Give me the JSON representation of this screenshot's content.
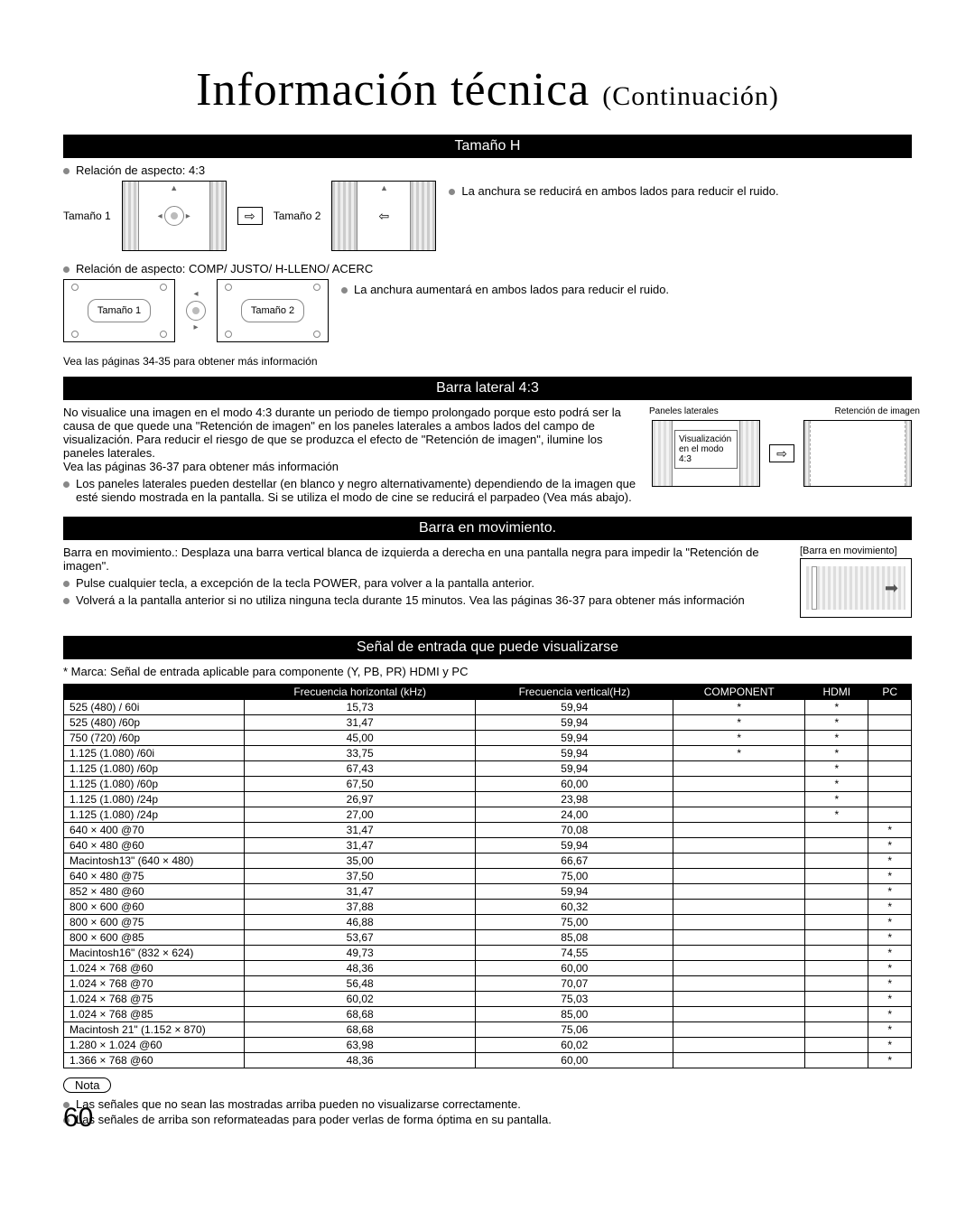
{
  "page_number": "60",
  "title_main": "Información técnica",
  "title_suffix": "(Continuación)",
  "sections": {
    "tamano_h": {
      "header": "Tamaño H",
      "aspect_43_label": "Relación de aspecto: 4:3",
      "aspect_other_label": "Relación de aspecto: COMP/ JUSTO/ H-LLENO/ ACERC",
      "tam1": "Tamaño 1",
      "tam2": "Tamaño 2",
      "note_shrink": "La anchura se reducirá en ambos lados para reducir el ruido.",
      "note_expand": "La anchura aumentará en ambos lados para reducir el ruido.",
      "see_more": "Vea las páginas 34-35 para obtener más información"
    },
    "barra_lateral": {
      "header": "Barra lateral 4:3",
      "para": "No visualice una imagen en el modo 4:3 durante un periodo de tiempo prolongado porque esto podrá ser la causa de que quede una \"Retención de imagen\" en los paneles laterales a ambos lados del campo de visualización. Para reducir el riesgo de que se produzca el efecto de \"Retención de imagen\", ilumine los paneles laterales.",
      "see_more": "Vea las páginas 36-37 para obtener más información",
      "bullet": "Los paneles laterales pueden destellar (en blanco y negro alternativamente) dependiendo de la imagen que esté siendo mostrada en la pantalla. Si se utiliza el modo de cine se reducirá el parpadeo (Vea más abajo).",
      "label_paneles": "Paneles laterales",
      "label_viz": "Visualización en el modo 4:3",
      "label_retencion": "Retención de imagen"
    },
    "barra_mov": {
      "header": "Barra en movimiento.",
      "desc": "Barra en movimiento.: Desplaza una barra vertical blanca de izquierda a derecha en una pantalla negra para impedir la \"Retención de imagen\".",
      "bullet1": "Pulse cualquier tecla, a excepción de la tecla POWER, para volver a la pantalla anterior.",
      "bullet2": "Volverá a la pantalla anterior si no utiliza ninguna tecla durante 15 minutos. Vea las páginas 36-37 para obtener más información",
      "diagram_label": "[Barra en movimiento]"
    },
    "senal": {
      "header": "Señal de entrada que puede visualizarse",
      "mark_note": "* Marca: Señal de entrada aplicable para componente (Y, PB, PR) HDMI y PC",
      "columns": [
        "",
        "Frecuencia horizontal (kHz)",
        "Frecuencia vertical(Hz)",
        "COMPONENT",
        "HDMI",
        "PC"
      ],
      "rows": [
        {
          "s": "525 (480) / 60i",
          "h": "15,73",
          "v": "59,94",
          "c": "*",
          "hd": "*",
          "p": ""
        },
        {
          "s": "525 (480) /60p",
          "h": "31,47",
          "v": "59,94",
          "c": "*",
          "hd": "*",
          "p": ""
        },
        {
          "s": "750 (720) /60p",
          "h": "45,00",
          "v": "59,94",
          "c": "*",
          "hd": "*",
          "p": ""
        },
        {
          "s": "1.125 (1.080) /60i",
          "h": "33,75",
          "v": "59,94",
          "c": "*",
          "hd": "*",
          "p": ""
        },
        {
          "s": "1.125 (1.080) /60p",
          "h": "67,43",
          "v": "59,94",
          "c": "",
          "hd": "*",
          "p": ""
        },
        {
          "s": "1.125 (1.080) /60p",
          "h": "67,50",
          "v": "60,00",
          "c": "",
          "hd": "*",
          "p": ""
        },
        {
          "s": "1.125 (1.080) /24p",
          "h": "26,97",
          "v": "23,98",
          "c": "",
          "hd": "*",
          "p": ""
        },
        {
          "s": "1.125 (1.080) /24p",
          "h": "27,00",
          "v": "24,00",
          "c": "",
          "hd": "*",
          "p": ""
        },
        {
          "s": "640 × 400 @70",
          "h": "31,47",
          "v": "70,08",
          "c": "",
          "hd": "",
          "p": "*"
        },
        {
          "s": "640 × 480 @60",
          "h": "31,47",
          "v": "59,94",
          "c": "",
          "hd": "",
          "p": "*"
        },
        {
          "s": "Macintosh13\" (640 × 480)",
          "h": "35,00",
          "v": "66,67",
          "c": "",
          "hd": "",
          "p": "*"
        },
        {
          "s": "640 × 480 @75",
          "h": "37,50",
          "v": "75,00",
          "c": "",
          "hd": "",
          "p": "*"
        },
        {
          "s": "852 × 480 @60",
          "h": "31,47",
          "v": "59,94",
          "c": "",
          "hd": "",
          "p": "*"
        },
        {
          "s": "800 × 600 @60",
          "h": "37,88",
          "v": "60,32",
          "c": "",
          "hd": "",
          "p": "*"
        },
        {
          "s": "800 × 600 @75",
          "h": "46,88",
          "v": "75,00",
          "c": "",
          "hd": "",
          "p": "*"
        },
        {
          "s": "800 × 600 @85",
          "h": "53,67",
          "v": "85,08",
          "c": "",
          "hd": "",
          "p": "*"
        },
        {
          "s": "Macintosh16\" (832 × 624)",
          "h": "49,73",
          "v": "74,55",
          "c": "",
          "hd": "",
          "p": "*"
        },
        {
          "s": "1.024 × 768 @60",
          "h": "48,36",
          "v": "60,00",
          "c": "",
          "hd": "",
          "p": "*"
        },
        {
          "s": "1.024 × 768 @70",
          "h": "56,48",
          "v": "70,07",
          "c": "",
          "hd": "",
          "p": "*"
        },
        {
          "s": "1.024 × 768 @75",
          "h": "60,02",
          "v": "75,03",
          "c": "",
          "hd": "",
          "p": "*"
        },
        {
          "s": "1.024 × 768 @85",
          "h": "68,68",
          "v": "85,00",
          "c": "",
          "hd": "",
          "p": "*"
        },
        {
          "s": "Macintosh 21\" (1.152 × 870)",
          "h": "68,68",
          "v": "75,06",
          "c": "",
          "hd": "",
          "p": "*"
        },
        {
          "s": "1.280 × 1.024 @60",
          "h": "63,98",
          "v": "60,02",
          "c": "",
          "hd": "",
          "p": "*"
        },
        {
          "s": "1.366 × 768 @60",
          "h": "48,36",
          "v": "60,00",
          "c": "",
          "hd": "",
          "p": "*"
        }
      ],
      "nota_label": "Nota",
      "nota1": "Las señales que no sean las mostradas arriba pueden no visualizarse correctamente.",
      "nota2": "Las señales de arriba son reformateadas para poder verlas de forma óptima en su pantalla."
    }
  },
  "colors": {
    "bar_bg": "#000000",
    "bar_fg": "#ffffff",
    "bullet_fill": "#888888"
  }
}
